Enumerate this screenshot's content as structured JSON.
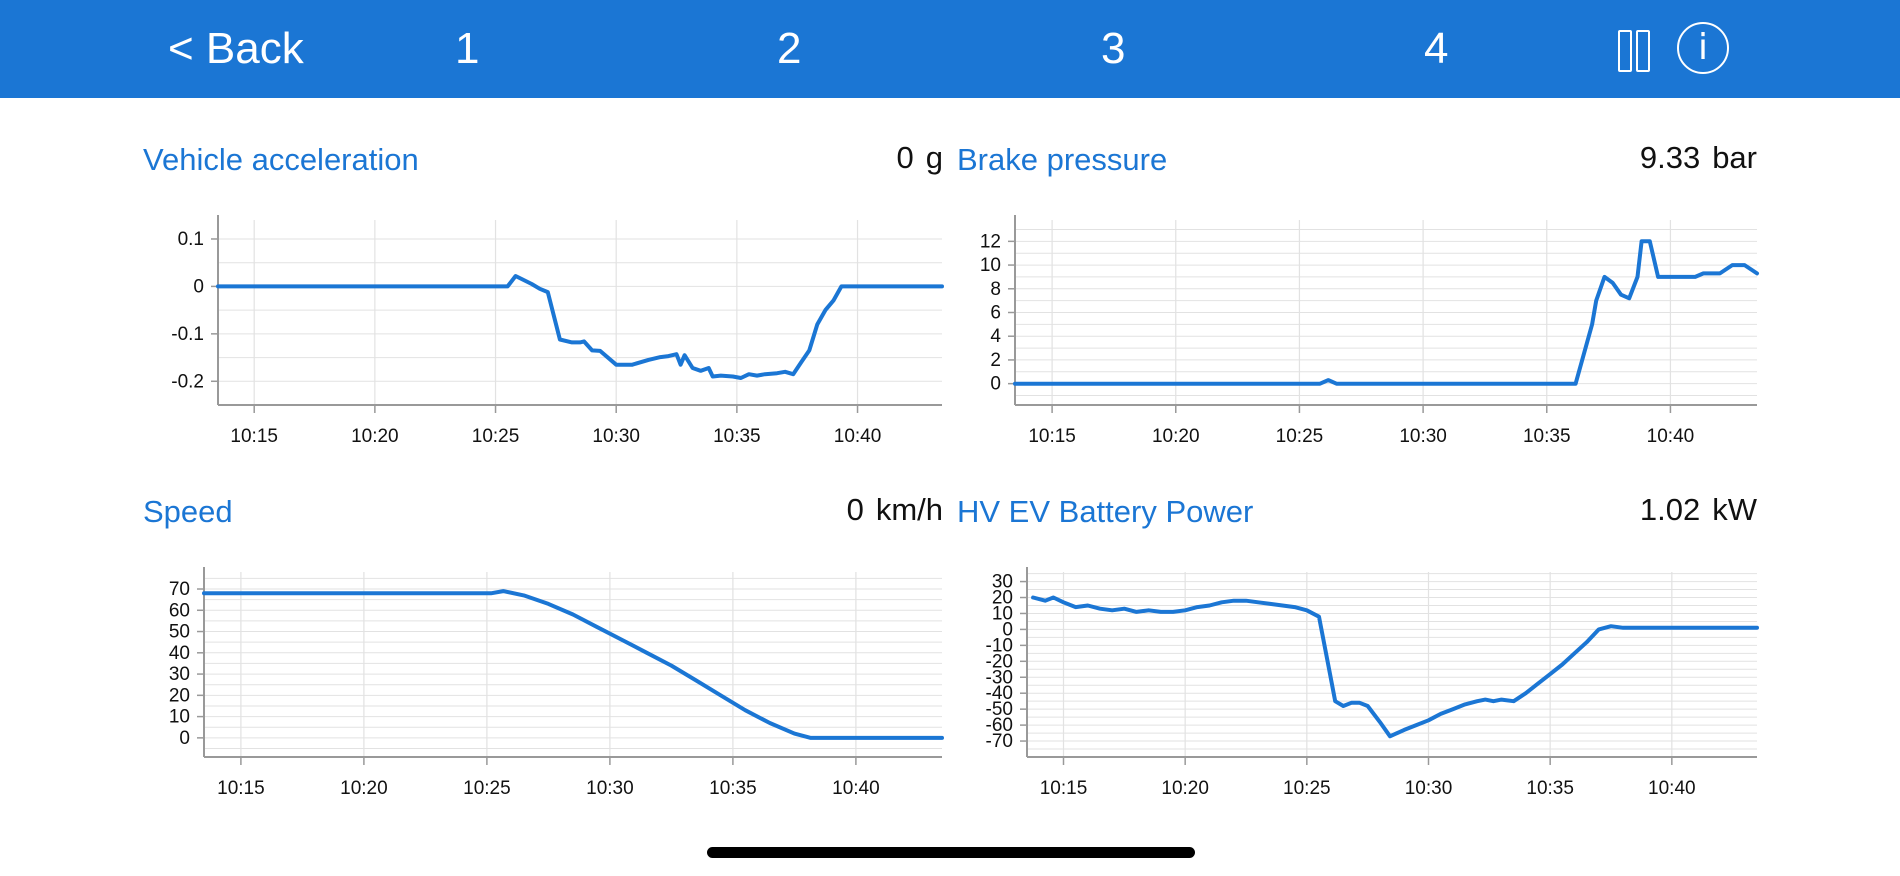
{
  "topbar": {
    "back_label": "< Back",
    "tabs": [
      "1",
      "2",
      "3",
      "4"
    ],
    "pause_icon": "pause-icon",
    "info_icon": "info-icon",
    "info_glyph": "i"
  },
  "colors": {
    "bar": "#1b76d4",
    "line": "#1b76d4",
    "title": "#1b76d4",
    "grid": "#e2e2e2",
    "axis": "#999999"
  },
  "panels": [
    {
      "title": "Vehicle acceleration",
      "value": "0",
      "unit": "g"
    },
    {
      "title": "Brake pressure",
      "value": "9.33",
      "unit": "bar"
    },
    {
      "title": "Speed",
      "value": "0",
      "unit": "km/h"
    },
    {
      "title": "HV EV Battery Power",
      "value": "1.02",
      "unit": "kW"
    }
  ],
  "chart_data": [
    {
      "type": "line",
      "title": "Vehicle acceleration",
      "xlim": [
        "10:13:30",
        "10:43:30"
      ],
      "ylim": [
        -0.25,
        0.14
      ],
      "xticks": [
        "10:15",
        "10:20",
        "10:25",
        "10:30",
        "10:35",
        "10:40"
      ],
      "yticks": [
        0.1,
        0,
        -0.1,
        -0.2
      ],
      "ytick_labels": [
        "0.1",
        "0",
        "-0.1",
        "-0.2"
      ],
      "grid": true,
      "series": [
        {
          "x": [
            "10:13:30",
            "10:25:30",
            "10:25:50",
            "10:26:30",
            "10:26:50",
            "10:27:10",
            "10:27:40",
            "10:28:10",
            "10:28:30",
            "10:28:40",
            "10:29:00",
            "10:29:20",
            "10:30:00",
            "10:30:20",
            "10:30:40",
            "10:31:20",
            "10:31:50",
            "10:32:10",
            "10:32:30",
            "10:32:40",
            "10:32:50",
            "10:33:10",
            "10:33:30",
            "10:33:50",
            "10:34:00",
            "10:34:20",
            "10:34:50",
            "10:35:10",
            "10:35:30",
            "10:35:50",
            "10:36:10",
            "10:36:40",
            "10:37:00",
            "10:37:20",
            "10:37:40",
            "10:38:00",
            "10:38:20",
            "10:38:40",
            "10:39:00",
            "10:39:20",
            "10:40:00",
            "10:43:30"
          ],
          "y": [
            0,
            0,
            0.022,
            0.005,
            -0.005,
            -0.012,
            -0.112,
            -0.118,
            -0.118,
            -0.116,
            -0.135,
            -0.136,
            -0.165,
            -0.165,
            -0.165,
            -0.155,
            -0.149,
            -0.147,
            -0.143,
            -0.165,
            -0.145,
            -0.172,
            -0.178,
            -0.172,
            -0.19,
            -0.188,
            -0.19,
            -0.193,
            -0.185,
            -0.188,
            -0.185,
            -0.183,
            -0.18,
            -0.185,
            -0.16,
            -0.135,
            -0.08,
            -0.05,
            -0.03,
            0,
            0,
            0
          ]
        }
      ]
    },
    {
      "type": "line",
      "title": "Brake pressure",
      "xlim": [
        "10:13:30",
        "10:43:30"
      ],
      "ylim": [
        -1.8,
        13.8
      ],
      "xticks": [
        "10:15",
        "10:20",
        "10:25",
        "10:30",
        "10:35",
        "10:40"
      ],
      "yticks": [
        12,
        10,
        8,
        6,
        4,
        2,
        0
      ],
      "ytick_labels": [
        "12",
        "10",
        "8",
        "6",
        "4",
        "2",
        "0"
      ],
      "grid": true,
      "series": [
        {
          "x": [
            "10:13:30",
            "10:25:50",
            "10:26:10",
            "10:26:30",
            "10:36:10",
            "10:36:50",
            "10:37:00",
            "10:37:20",
            "10:37:40",
            "10:38:00",
            "10:38:20",
            "10:38:40",
            "10:38:50",
            "10:39:10",
            "10:39:30",
            "10:40:00",
            "10:40:30",
            "10:41:00",
            "10:41:20",
            "10:42:00",
            "10:42:30",
            "10:43:00",
            "10:43:30"
          ],
          "y": [
            0,
            0,
            0.3,
            0,
            0,
            5,
            7,
            9,
            8.5,
            7.5,
            7.2,
            9,
            12,
            12,
            9,
            9,
            9,
            9,
            9.3,
            9.3,
            10,
            10,
            9.3
          ]
        }
      ]
    },
    {
      "type": "line",
      "title": "Speed",
      "xlim": [
        "10:13:30",
        "10:43:30"
      ],
      "ylim": [
        -9,
        78
      ],
      "xticks": [
        "10:15",
        "10:20",
        "10:25",
        "10:30",
        "10:35",
        "10:40"
      ],
      "yticks": [
        70,
        60,
        50,
        40,
        30,
        20,
        10,
        0
      ],
      "ytick_labels": [
        "70",
        "60",
        "50",
        "40",
        "30",
        "20",
        "10",
        "0"
      ],
      "grid": true,
      "series": [
        {
          "x": [
            "10:13:30",
            "10:25:10",
            "10:25:40",
            "10:26:30",
            "10:27:30",
            "10:28:30",
            "10:29:30",
            "10:30:30",
            "10:31:30",
            "10:32:30",
            "10:33:30",
            "10:34:30",
            "10:35:30",
            "10:36:30",
            "10:37:30",
            "10:38:10",
            "10:43:30"
          ],
          "y": [
            68,
            68,
            69,
            67,
            63,
            58,
            52,
            46,
            40,
            34,
            27,
            20,
            13,
            7,
            2,
            0,
            0
          ]
        }
      ]
    },
    {
      "type": "line",
      "title": "HV EV Battery Power",
      "xlim": [
        "10:13:30",
        "10:43:30"
      ],
      "ylim": [
        -80,
        36
      ],
      "xticks": [
        "10:15",
        "10:20",
        "10:25",
        "10:30",
        "10:35",
        "10:40"
      ],
      "yticks": [
        30,
        20,
        10,
        0,
        -10,
        -20,
        -30,
        -40,
        -50,
        -60,
        -70
      ],
      "ytick_labels": [
        "30",
        "20",
        "10",
        "0",
        "-10",
        "-20",
        "-30",
        "-40",
        "-50",
        "-60",
        "-70"
      ],
      "grid": true,
      "series": [
        {
          "x": [
            "10:13:45",
            "10:14:15",
            "10:14:35",
            "10:15:00",
            "10:15:30",
            "10:16:00",
            "10:16:30",
            "10:17:00",
            "10:17:30",
            "10:18:00",
            "10:18:30",
            "10:19:00",
            "10:19:30",
            "10:20:00",
            "10:20:30",
            "10:21:00",
            "10:21:30",
            "10:22:00",
            "10:22:30",
            "10:23:00",
            "10:23:30",
            "10:24:00",
            "10:24:30",
            "10:25:00",
            "10:25:30",
            "10:25:55",
            "10:26:10",
            "10:26:30",
            "10:26:50",
            "10:27:10",
            "10:27:30",
            "10:28:00",
            "10:28:25",
            "10:29:00",
            "10:29:30",
            "10:30:00",
            "10:30:30",
            "10:31:00",
            "10:31:30",
            "10:32:00",
            "10:32:20",
            "10:32:40",
            "10:33:00",
            "10:33:30",
            "10:34:00",
            "10:34:30",
            "10:35:00",
            "10:35:30",
            "10:36:00",
            "10:36:30",
            "10:37:00",
            "10:37:30",
            "10:38:00",
            "10:39:00",
            "10:40:00",
            "10:41:00",
            "10:42:00",
            "10:43:30"
          ],
          "y": [
            20,
            18,
            20,
            17,
            14,
            15,
            13,
            12,
            13,
            11,
            12,
            11,
            11,
            12,
            14,
            15,
            17,
            18,
            18,
            17,
            16,
            15,
            14,
            12,
            8,
            -25,
            -45,
            -48,
            -46,
            -46,
            -48,
            -58,
            -67,
            -63,
            -60,
            -57,
            -53,
            -50,
            -47,
            -45,
            -44,
            -45,
            -44,
            -45,
            -40,
            -34,
            -28,
            -22,
            -15,
            -8,
            0,
            2,
            1,
            1,
            1,
            1,
            1,
            1
          ]
        }
      ]
    }
  ]
}
